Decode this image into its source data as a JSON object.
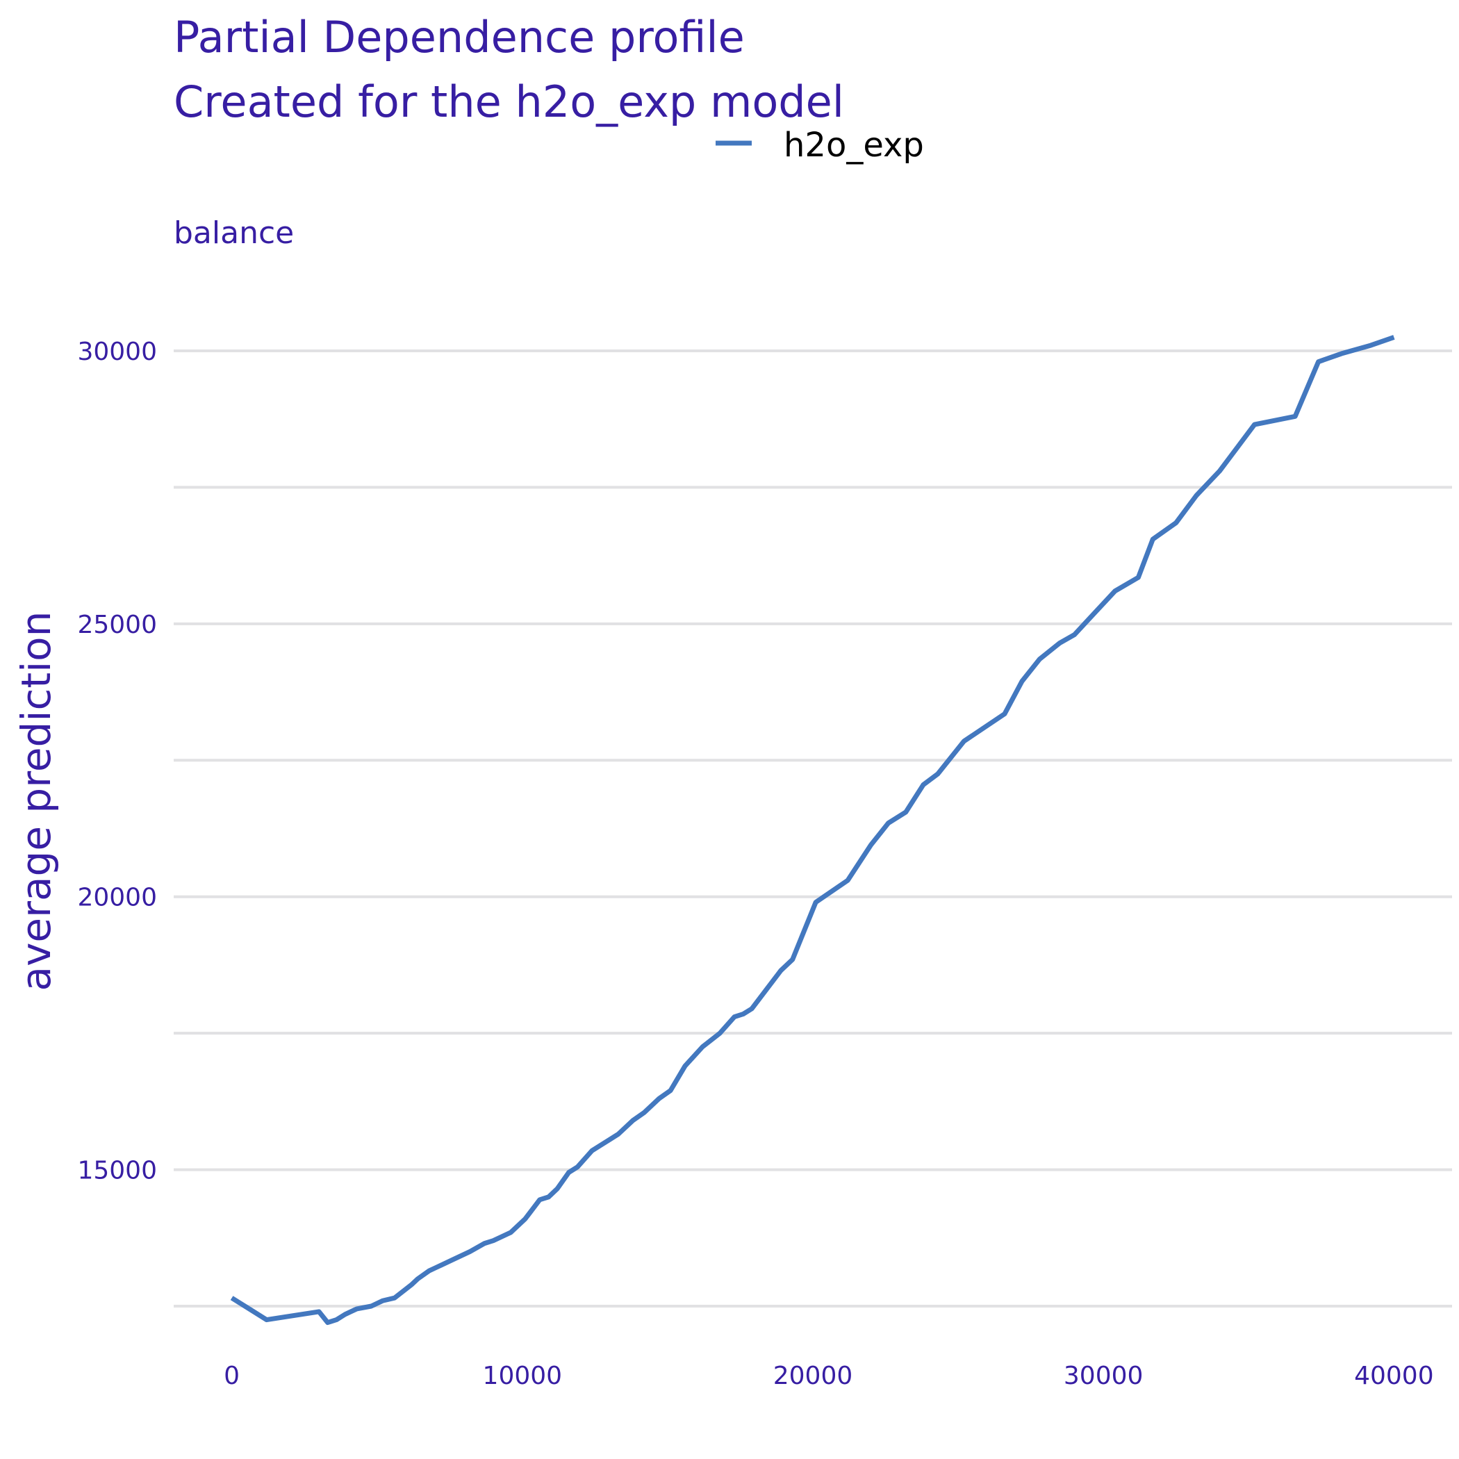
{
  "chart_data": {
    "type": "line",
    "title": "Partial Dependence profile",
    "subtitle": "Created for the h2o_exp model",
    "panel_label": "balance",
    "xlabel": "",
    "ylabel": "average prediction",
    "xlim": [
      -2000,
      42000
    ],
    "ylim": [
      11800,
      31400
    ],
    "x_ticks": [
      0,
      10000,
      20000,
      30000,
      40000
    ],
    "x_tick_labels": [
      "0",
      "10000",
      "20000",
      "30000",
      "40000"
    ],
    "y_ticks": [
      15000,
      20000,
      25000,
      30000
    ],
    "y_tick_labels": [
      "15000",
      "20000",
      "25000",
      "30000"
    ],
    "y_gridlines": [
      12500,
      15000,
      17500,
      20000,
      22500,
      25000,
      27500,
      30000
    ],
    "grid": true,
    "legend_position": "top",
    "series": [
      {
        "name": "h2o_exp",
        "color": "#4378bf",
        "x": [
          0,
          600,
          1200,
          1800,
          2400,
          3000,
          3300,
          3600,
          3900,
          4300,
          4800,
          5200,
          5600,
          6200,
          6400,
          6800,
          7000,
          7600,
          8200,
          8700,
          9000,
          9600,
          10100,
          10600,
          10900,
          11200,
          11600,
          11900,
          12400,
          13000,
          13300,
          13800,
          14200,
          14700,
          15100,
          15600,
          16200,
          16800,
          17300,
          17600,
          17900,
          18400,
          18900,
          19300,
          20100,
          21200,
          22000,
          22600,
          23200,
          23800,
          24300,
          25200,
          26600,
          27200,
          27800,
          28500,
          29000,
          29700,
          30400,
          31200,
          31700,
          32500,
          33200,
          34000,
          35200,
          36600,
          37400,
          38200,
          39200,
          40000
        ],
        "y": [
          12650,
          12450,
          12250,
          12300,
          12350,
          12400,
          12200,
          12250,
          12350,
          12450,
          12500,
          12600,
          12650,
          12900,
          13000,
          13150,
          13200,
          13350,
          13500,
          13650,
          13700,
          13850,
          14100,
          14450,
          14500,
          14650,
          14950,
          15050,
          15350,
          15550,
          15650,
          15900,
          16050,
          16300,
          16450,
          16900,
          17250,
          17500,
          17800,
          17850,
          17950,
          18300,
          18650,
          18850,
          19900,
          20300,
          20950,
          21350,
          21550,
          22050,
          22250,
          22850,
          23350,
          23950,
          24350,
          24650,
          24800,
          25200,
          25600,
          25850,
          26550,
          26850,
          27350,
          27800,
          28650,
          28800,
          29800,
          29950,
          30100,
          30250
        ]
      }
    ]
  }
}
